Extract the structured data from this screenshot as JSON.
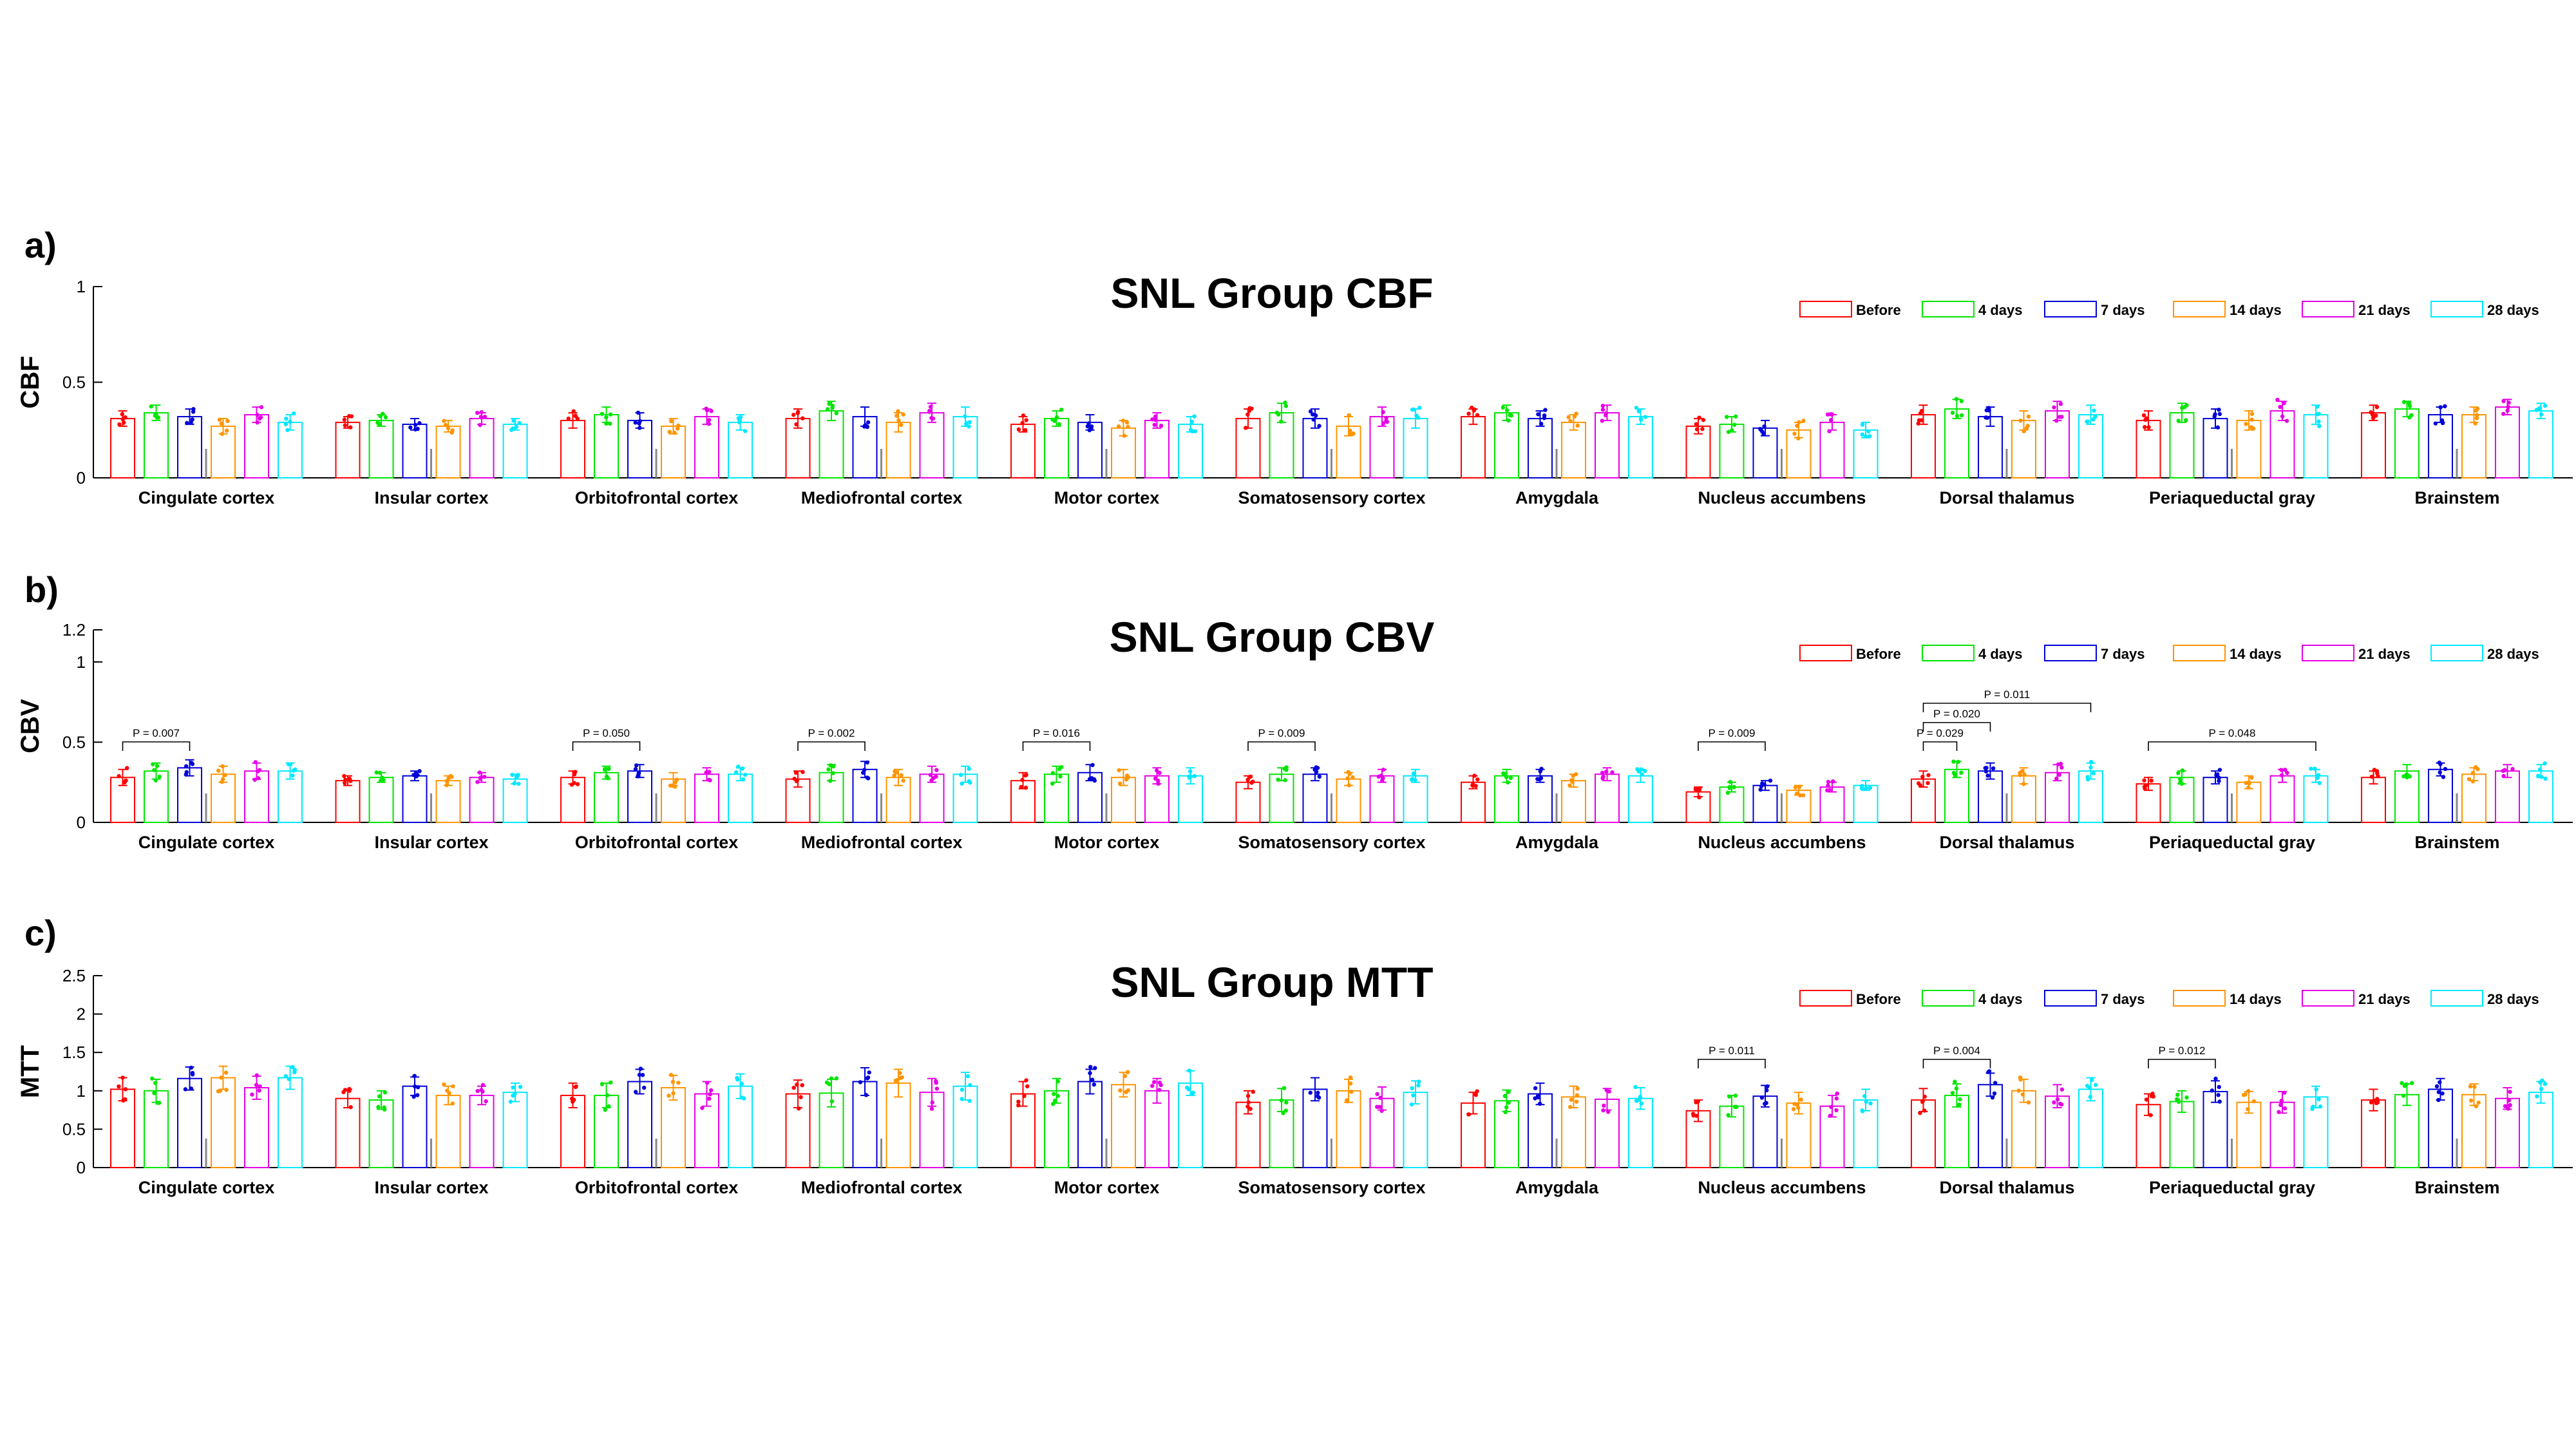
{
  "chart_data": [
    {
      "panel": "a)",
      "type": "bar",
      "title": "SNL Group CBF",
      "ylabel": "CBF",
      "xlabel": "",
      "ylim": [
        0,
        1
      ],
      "yticks": [
        0,
        0.5,
        1
      ],
      "legend": [
        "Before",
        "4 days",
        "7 days",
        "14 days",
        "21 days",
        "28 days"
      ],
      "legend_position": "top-right",
      "categories": [
        "Cingulate cortex",
        "Insular cortex",
        "Orbitofrontal cortex",
        "Mediofrontal cortex",
        "Motor cortex",
        "Somatosensory cortex",
        "Amygdala",
        "Nucleus accumbens",
        "Dorsal thalamus",
        "Periaqueductal gray",
        "Brainstem"
      ],
      "series": [
        {
          "name": "Before",
          "values": [
            0.31,
            0.29,
            0.3,
            0.31,
            0.28,
            0.31,
            0.32,
            0.27,
            0.33,
            0.3,
            0.34
          ]
        },
        {
          "name": "4 days",
          "values": [
            0.34,
            0.3,
            0.33,
            0.35,
            0.31,
            0.34,
            0.34,
            0.28,
            0.36,
            0.34,
            0.36
          ]
        },
        {
          "name": "7 days",
          "values": [
            0.32,
            0.28,
            0.3,
            0.32,
            0.29,
            0.31,
            0.31,
            0.26,
            0.32,
            0.31,
            0.33
          ]
        },
        {
          "name": "14 days",
          "values": [
            0.27,
            0.27,
            0.27,
            0.29,
            0.26,
            0.27,
            0.29,
            0.25,
            0.3,
            0.3,
            0.33
          ]
        },
        {
          "name": "21 days",
          "values": [
            0.33,
            0.31,
            0.32,
            0.34,
            0.3,
            0.32,
            0.34,
            0.29,
            0.35,
            0.35,
            0.37
          ]
        },
        {
          "name": "28 days",
          "values": [
            0.29,
            0.28,
            0.29,
            0.32,
            0.28,
            0.31,
            0.32,
            0.25,
            0.33,
            0.33,
            0.35
          ]
        }
      ],
      "errors": [
        0.04,
        0.03,
        0.04,
        0.05,
        0.04,
        0.05,
        0.04,
        0.04,
        0.05,
        0.05,
        0.04
      ],
      "significance": []
    },
    {
      "panel": "b)",
      "type": "bar",
      "title": "SNL Group CBV",
      "ylabel": "CBV",
      "xlabel": "",
      "ylim": [
        0,
        1.2
      ],
      "yticks": [
        0,
        0.5,
        1,
        1.2
      ],
      "legend": [
        "Before",
        "4 days",
        "7 days",
        "14 days",
        "21 days",
        "28 days"
      ],
      "legend_position": "top-right",
      "categories": [
        "Cingulate cortex",
        "Insular cortex",
        "Orbitofrontal cortex",
        "Mediofrontal cortex",
        "Motor cortex",
        "Somatosensory cortex",
        "Amygdala",
        "Nucleus accumbens",
        "Dorsal thalamus",
        "Periaqueductal gray",
        "Brainstem"
      ],
      "series": [
        {
          "name": "Before",
          "values": [
            0.28,
            0.26,
            0.28,
            0.27,
            0.26,
            0.25,
            0.25,
            0.19,
            0.27,
            0.24,
            0.28
          ]
        },
        {
          "name": "4 days",
          "values": [
            0.32,
            0.28,
            0.31,
            0.31,
            0.3,
            0.3,
            0.29,
            0.22,
            0.33,
            0.28,
            0.32
          ]
        },
        {
          "name": "7 days",
          "values": [
            0.34,
            0.29,
            0.32,
            0.33,
            0.31,
            0.3,
            0.29,
            0.23,
            0.32,
            0.28,
            0.33
          ]
        },
        {
          "name": "14 days",
          "values": [
            0.3,
            0.26,
            0.27,
            0.28,
            0.28,
            0.27,
            0.26,
            0.2,
            0.29,
            0.25,
            0.3
          ]
        },
        {
          "name": "21 days",
          "values": [
            0.32,
            0.28,
            0.3,
            0.3,
            0.29,
            0.29,
            0.3,
            0.22,
            0.31,
            0.29,
            0.32
          ]
        },
        {
          "name": "28 days",
          "values": [
            0.32,
            0.27,
            0.3,
            0.3,
            0.29,
            0.29,
            0.29,
            0.23,
            0.32,
            0.29,
            0.32
          ]
        }
      ],
      "errors": [
        0.05,
        0.03,
        0.04,
        0.05,
        0.05,
        0.04,
        0.04,
        0.03,
        0.05,
        0.04,
        0.04
      ],
      "significance": [
        {
          "region": 0,
          "from": 0,
          "to": 2,
          "label": "P = 0.007",
          "level": 0
        },
        {
          "region": 2,
          "from": 0,
          "to": 2,
          "label": "P = 0.050",
          "level": 0
        },
        {
          "region": 3,
          "from": 0,
          "to": 2,
          "label": "P = 0.002",
          "level": 0
        },
        {
          "region": 4,
          "from": 0,
          "to": 2,
          "label": "P = 0.016",
          "level": 0
        },
        {
          "region": 5,
          "from": 0,
          "to": 2,
          "label": "P = 0.009",
          "level": 0
        },
        {
          "region": 7,
          "from": 0,
          "to": 2,
          "label": "P = 0.009",
          "level": 0
        },
        {
          "region": 8,
          "from": 0,
          "to": 1,
          "label": "P = 0.029",
          "level": 0
        },
        {
          "region": 8,
          "from": 0,
          "to": 2,
          "label": "P = 0.020",
          "level": 1
        },
        {
          "region": 8,
          "from": 0,
          "to": 5,
          "label": "P = 0.011",
          "level": 2
        },
        {
          "region": 9,
          "from": 0,
          "to": 5,
          "label": "P = 0.048",
          "level": 0
        }
      ]
    },
    {
      "panel": "c)",
      "type": "bar",
      "title": "SNL Group MTT",
      "ylabel": "MTT",
      "xlabel": "",
      "ylim": [
        0,
        2.5
      ],
      "yticks": [
        0,
        0.5,
        1,
        1.5,
        2,
        2.5
      ],
      "legend": [
        "Before",
        "4 days",
        "7 days",
        "14 days",
        "21 days",
        "28 days"
      ],
      "legend_position": "top-right",
      "categories": [
        "Cingulate cortex",
        "Insular cortex",
        "Orbitofrontal cortex",
        "Mediofrontal cortex",
        "Motor cortex",
        "Somatosensory cortex",
        "Amygdala",
        "Nucleus accumbens",
        "Dorsal thalamus",
        "Periaqueductal gray",
        "Brainstem"
      ],
      "series": [
        {
          "name": "Before",
          "values": [
            1.02,
            0.9,
            0.94,
            0.96,
            0.96,
            0.85,
            0.84,
            0.74,
            0.88,
            0.82,
            0.88
          ]
        },
        {
          "name": "4 days",
          "values": [
            1.0,
            0.88,
            0.94,
            0.97,
            1.0,
            0.88,
            0.87,
            0.8,
            0.94,
            0.86,
            0.95
          ]
        },
        {
          "name": "7 days",
          "values": [
            1.16,
            1.06,
            1.12,
            1.12,
            1.12,
            1.02,
            0.96,
            0.93,
            1.08,
            0.99,
            1.02
          ]
        },
        {
          "name": "14 days",
          "values": [
            1.17,
            0.94,
            1.04,
            1.1,
            1.08,
            1.0,
            0.92,
            0.84,
            1.0,
            0.85,
            0.95
          ]
        },
        {
          "name": "21 days",
          "values": [
            1.04,
            0.94,
            0.96,
            0.98,
            1.0,
            0.9,
            0.89,
            0.8,
            0.93,
            0.85,
            0.9
          ]
        },
        {
          "name": "28 days",
          "values": [
            1.17,
            0.98,
            1.06,
            1.06,
            1.1,
            0.98,
            0.9,
            0.88,
            1.02,
            0.92,
            0.98
          ]
        }
      ],
      "errors": [
        0.15,
        0.12,
        0.16,
        0.18,
        0.16,
        0.15,
        0.14,
        0.14,
        0.15,
        0.14,
        0.14
      ],
      "significance": [
        {
          "region": 7,
          "from": 0,
          "to": 2,
          "label": "P = 0.011",
          "level": 0
        },
        {
          "region": 8,
          "from": 0,
          "to": 2,
          "label": "P = 0.004",
          "level": 0
        },
        {
          "region": 9,
          "from": 0,
          "to": 2,
          "label": "P = 0.012",
          "level": 0
        }
      ]
    }
  ],
  "colors": {
    "series": [
      "#ff0000",
      "#00e600",
      "#0000d8",
      "#ff9400",
      "#e600e6",
      "#00e8ff"
    ],
    "axis": "#000000",
    "background": "#ffffff"
  }
}
